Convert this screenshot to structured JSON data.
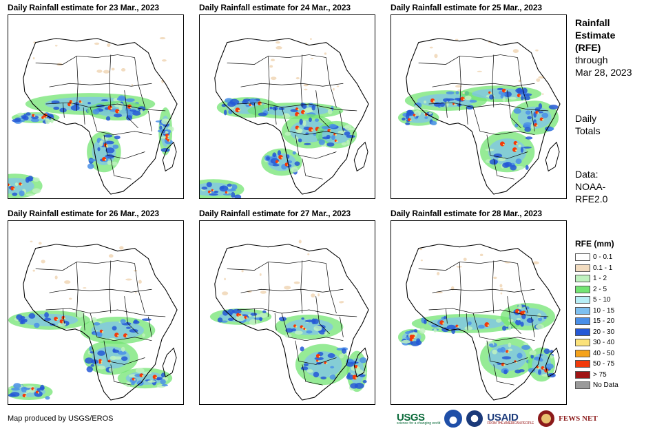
{
  "panels": [
    {
      "title": "Daily Rainfall estimate for 23 Mar., 2023"
    },
    {
      "title": "Daily Rainfall estimate for 24 Mar., 2023"
    },
    {
      "title": "Daily Rainfall estimate for 25 Mar., 2023"
    },
    {
      "title": "Daily Rainfall estimate for 26 Mar., 2023"
    },
    {
      "title": "Daily Rainfall estimate for 27 Mar., 2023"
    },
    {
      "title": "Daily Rainfall estimate for 28 Mar., 2023"
    }
  ],
  "side": {
    "title_line1": "Rainfall",
    "title_line2": "Estimate",
    "title_line3": "(RFE)",
    "through_line1": "through",
    "through_line2": "Mar 28, 2023",
    "totals_line1": "Daily",
    "totals_line2": "Totals",
    "data_line1": "Data:",
    "data_line2": "NOAA-",
    "data_line3": "RFE2.0"
  },
  "legend": {
    "title": "RFE (mm)",
    "items": [
      {
        "label": "0 - 0.1",
        "color": "#ffffff"
      },
      {
        "label": "0.1 - 1",
        "color": "#f2dcc0"
      },
      {
        "label": "1 - 2",
        "color": "#bff2bf"
      },
      {
        "label": "2 - 5",
        "color": "#73e473"
      },
      {
        "label": "5 - 10",
        "color": "#b7eef5"
      },
      {
        "label": "10 - 15",
        "color": "#7ec0f0"
      },
      {
        "label": "15 - 20",
        "color": "#4a8fe8"
      },
      {
        "label": "20 - 30",
        "color": "#2458d6"
      },
      {
        "label": "30 - 40",
        "color": "#fbe27a"
      },
      {
        "label": "40 - 50",
        "color": "#f5a21a"
      },
      {
        "label": "50 - 75",
        "color": "#f23a0a"
      },
      {
        "label": "> 75",
        "color": "#a01414"
      },
      {
        "label": "No Data",
        "color": "#9a9a9a"
      }
    ]
  },
  "credit": "Map produced by USGS/EROS",
  "logos": {
    "usgs": "USGS",
    "usgs_tagline": "science for a changing world",
    "usaid": "USAID",
    "usaid_tagline": "FROM THE AMERICAN PEOPLE",
    "fews": "FEWS NET"
  }
}
